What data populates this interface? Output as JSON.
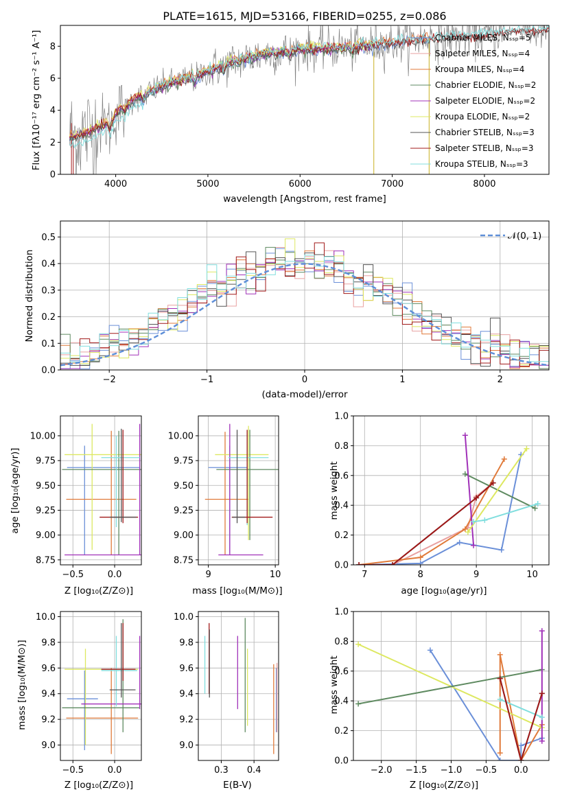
{
  "colors": {
    "chabrier_miles": "#6a8fd8",
    "salpeter_miles": "#e8a0a0",
    "kroupa_miles": "#e07a3a",
    "chabrier_elodie": "#5e8a60",
    "salpeter_elodie": "#a030b8",
    "kroupa_elodie": "#dde860",
    "chabrier_stelib": "#555555",
    "salpeter_stelib": "#a01818",
    "kroupa_stelib": "#80dede",
    "data": "#808080",
    "normal": "#5f8fd8"
  },
  "chart_data": [
    {
      "id": "spectrum",
      "type": "line",
      "title": "PLATE=1615, MJD=53166, FIBERID=0255, z=0.086",
      "xlabel": "wavelength [Angstrom, rest frame]",
      "ylabel": "Flux [fλ10⁻¹⁷ erg cm⁻² s⁻¹ A⁻¹]",
      "xlim": [
        3400,
        8700
      ],
      "ylim": [
        0,
        9.3
      ],
      "xticks": [
        "4000",
        "5000",
        "6000",
        "7000",
        "8000"
      ],
      "yticks": [
        "0",
        "2",
        "4",
        "6",
        "8"
      ],
      "grid": false,
      "legend_position": "right",
      "continuum_knots": [
        [
          3500,
          2.3
        ],
        [
          3700,
          2.6
        ],
        [
          3900,
          3.2
        ],
        [
          4000,
          3.8
        ],
        [
          4200,
          4.7
        ],
        [
          4500,
          5.5
        ],
        [
          4900,
          6.2
        ],
        [
          5200,
          6.9
        ],
        [
          5600,
          7.5
        ],
        [
          6000,
          7.8
        ],
        [
          6400,
          7.9
        ],
        [
          6800,
          8.1
        ],
        [
          7000,
          8.2
        ],
        [
          7400,
          8.5
        ],
        [
          7800,
          8.6
        ],
        [
          8300,
          8.9
        ],
        [
          8700,
          9.0
        ]
      ],
      "series": [
        {
          "name": "Chabrier MILES, N_SSP=5",
          "color_key": "chabrier_miles"
        },
        {
          "name": "Salpeter MILES, N_SSP=4",
          "color_key": "salpeter_miles"
        },
        {
          "name": "Kroupa MILES, N_SSP=4",
          "color_key": "kroupa_miles"
        },
        {
          "name": "Chabrier ELODIE, N_SSP=2",
          "color_key": "chabrier_elodie"
        },
        {
          "name": "Salpeter ELODIE, N_SSP=2",
          "color_key": "salpeter_elodie"
        },
        {
          "name": "Kroupa ELODIE, N_SSP=2",
          "color_key": "kroupa_elodie"
        },
        {
          "name": "Chabrier STELIB, N_SSP=3",
          "color_key": "chabrier_stelib"
        },
        {
          "name": "Salpeter STELIB, N_SSP=3",
          "color_key": "salpeter_stelib"
        },
        {
          "name": "Kroupa STELIB, N_SSP=3",
          "color_key": "kroupa_stelib"
        }
      ]
    },
    {
      "id": "residuals",
      "type": "histogram",
      "xlabel": "(data-model)/error",
      "ylabel": "Normed distribution",
      "xlim": [
        -2.5,
        2.5
      ],
      "ylim": [
        0,
        0.56
      ],
      "xticks": [
        "−2",
        "−1",
        "0",
        "1",
        "2"
      ],
      "yticks": [
        "0.0",
        "0.1",
        "0.2",
        "0.3",
        "0.4",
        "0.5"
      ],
      "grid": true,
      "legend": "𝒩(0, 1)",
      "legend_position": "top-right",
      "bin_width": 0.1,
      "reference_curve": "normal(0,1)"
    },
    {
      "id": "age-Z",
      "type": "errorbar",
      "xlabel": "Z [log₁₀(Z/Z⊙)]",
      "ylabel": "age  [log₁₀(age/yr)]",
      "xlim": [
        -0.65,
        0.32
      ],
      "ylim": [
        8.7,
        10.2
      ],
      "xticks": [
        {
          "v": -0.5,
          "t": "−0.5"
        },
        {
          "v": 0,
          "t": "0.0"
        }
      ],
      "yticks": [
        {
          "v": 8.75,
          "t": "8.75"
        },
        {
          "v": 9.0,
          "t": "9.00"
        },
        {
          "v": 9.25,
          "t": "9.25"
        },
        {
          "v": 9.5,
          "t": "9.50"
        },
        {
          "v": 9.75,
          "t": "9.75"
        },
        {
          "v": 10.0,
          "t": "10.00"
        }
      ],
      "grid": true,
      "points": [
        {
          "c": "chabrier_miles",
          "x": -0.36,
          "y": 9.68,
          "xl": -0.57,
          "xh": 0.3,
          "yl": 8.8,
          "yh": 9.9
        },
        {
          "c": "kroupa_miles",
          "x": -0.04,
          "y": 9.36,
          "xl": -0.58,
          "xh": 0.26,
          "yl": 8.8,
          "yh": 10.05
        },
        {
          "c": "kroupa_elodie",
          "x": -0.27,
          "y": 9.81,
          "xl": -0.6,
          "xh": 0.32,
          "yl": 8.85,
          "yh": 10.12
        },
        {
          "c": "chabrier_elodie",
          "x": 0.05,
          "y": 9.66,
          "xl": -0.63,
          "xh": 0.32,
          "yl": 8.8,
          "yh": 10.05
        },
        {
          "c": "salpeter_elodie",
          "x": 0.3,
          "y": 8.8,
          "xl": -0.6,
          "xh": 0.32,
          "yl": 8.8,
          "yh": 10.12
        },
        {
          "c": "kroupa_stelib",
          "x": 0.02,
          "y": 9.78,
          "xl": -0.16,
          "xh": 0.3,
          "yl": 9.08,
          "yh": 10.0
        },
        {
          "c": "salpeter_stelib",
          "x": 0.1,
          "y": 9.18,
          "xl": -0.18,
          "xh": 0.28,
          "yl": 9.12,
          "yh": 10.06
        },
        {
          "c": "chabrier_stelib",
          "x": 0.08,
          "y": 9.18,
          "xl": -0.06,
          "xh": 0.26,
          "yl": 9.13,
          "yh": 10.07
        }
      ]
    },
    {
      "id": "age-mass",
      "type": "errorbar",
      "xlabel": "mass [log₁₀(M/M⊙)]",
      "xlim": [
        8.85,
        10.05
      ],
      "ylim": [
        8.7,
        10.2
      ],
      "xticks": [
        {
          "v": 9,
          "t": "9"
        },
        {
          "v": 10,
          "t": "10"
        }
      ],
      "yticks": [
        {
          "v": 8.75,
          "t": "8.75"
        },
        {
          "v": 9.0,
          "t": "9.00"
        },
        {
          "v": 9.25,
          "t": "9.25"
        },
        {
          "v": 9.5,
          "t": "9.50"
        },
        {
          "v": 9.75,
          "t": "9.75"
        },
        {
          "v": 10.0,
          "t": "10.00"
        }
      ],
      "grid": true,
      "points": [
        {
          "c": "chabrier_miles",
          "x": 9.32,
          "y": 9.68,
          "xl": 9.0,
          "xh": 9.58,
          "yl": 8.82,
          "yh": 9.9
        },
        {
          "c": "kroupa_miles",
          "x": 9.25,
          "y": 9.36,
          "xl": 8.95,
          "xh": 9.6,
          "yl": 8.8,
          "yh": 10.04
        },
        {
          "c": "kroupa_elodie",
          "x": 9.6,
          "y": 9.81,
          "xl": 9.1,
          "xh": 9.9,
          "yl": 8.95,
          "yh": 10.1
        },
        {
          "c": "chabrier_elodie",
          "x": 9.62,
          "y": 9.66,
          "xl": 9.12,
          "xh": 10.05,
          "yl": 8.95,
          "yh": 10.06
        },
        {
          "c": "salpeter_elodie",
          "x": 9.32,
          "y": 8.8,
          "xl": 9.15,
          "xh": 9.82,
          "yl": 8.8,
          "yh": 10.12
        },
        {
          "c": "kroupa_stelib",
          "x": 9.58,
          "y": 9.78,
          "xl": 9.3,
          "xh": 9.9,
          "yl": 9.1,
          "yh": 10.05
        },
        {
          "c": "salpeter_stelib",
          "x": 9.58,
          "y": 9.18,
          "xl": 9.35,
          "xh": 9.96,
          "yl": 9.12,
          "yh": 10.06
        },
        {
          "c": "chabrier_stelib",
          "x": 9.43,
          "y": 9.18,
          "xl": 9.36,
          "xh": 9.55,
          "yl": 9.12,
          "yh": 10.06
        }
      ]
    },
    {
      "id": "mw-age",
      "type": "line",
      "xlabel": "age  [log₁₀(age/yr)]",
      "ylabel": "mass weight",
      "xlim": [
        6.8,
        10.3
      ],
      "ylim": [
        0,
        1.0
      ],
      "xticks": [
        {
          "v": 7,
          "t": "7"
        },
        {
          "v": 8,
          "t": "8"
        },
        {
          "v": 9,
          "t": "9"
        },
        {
          "v": 10,
          "t": "10"
        }
      ],
      "yticks": [
        {
          "v": 0,
          "t": "0.0"
        },
        {
          "v": 0.2,
          "t": "0.2"
        },
        {
          "v": 0.4,
          "t": "0.4"
        },
        {
          "v": 0.6,
          "t": "0.6"
        },
        {
          "v": 0.8,
          "t": "0.8"
        },
        {
          "v": 1.0,
          "t": "1.0"
        }
      ],
      "grid": true,
      "series": [
        {
          "c": "chabrier_miles",
          "points": [
            [
              6.9,
              0.0
            ],
            [
              8.0,
              0.01
            ],
            [
              8.7,
              0.15
            ],
            [
              9.45,
              0.1
            ],
            [
              9.8,
              0.74
            ]
          ]
        },
        {
          "c": "salpeter_miles",
          "points": [
            [
              6.9,
              0.0
            ],
            [
              7.5,
              0.0
            ],
            [
              8.85,
              0.25
            ],
            [
              9.0,
              0.46
            ],
            [
              9.3,
              0.55
            ]
          ]
        },
        {
          "c": "kroupa_miles",
          "points": [
            [
              6.9,
              0.0
            ],
            [
              8.0,
              0.05
            ],
            [
              8.8,
              0.24
            ],
            [
              9.5,
              0.71
            ]
          ]
        },
        {
          "c": "chabrier_elodie",
          "points": [
            [
              8.8,
              0.61
            ],
            [
              10.05,
              0.38
            ]
          ]
        },
        {
          "c": "salpeter_elodie",
          "points": [
            [
              8.8,
              0.87
            ],
            [
              8.95,
              0.13
            ]
          ]
        },
        {
          "c": "kroupa_elodie",
          "points": [
            [
              8.85,
              0.22
            ],
            [
              9.9,
              0.78
            ]
          ]
        },
        {
          "c": "chabrier_stelib",
          "points": [
            [
              6.9,
              0.0
            ],
            [
              7.5,
              0.0
            ],
            [
              9.0,
              0.45
            ],
            [
              9.3,
              0.55
            ]
          ]
        },
        {
          "c": "salpeter_stelib",
          "points": [
            [
              6.9,
              0.0
            ],
            [
              7.5,
              0.0
            ],
            [
              9.0,
              0.45
            ],
            [
              9.3,
              0.55
            ]
          ]
        },
        {
          "c": "kroupa_stelib",
          "points": [
            [
              8.95,
              0.29
            ],
            [
              9.15,
              0.3
            ],
            [
              10.1,
              0.41
            ]
          ]
        }
      ]
    },
    {
      "id": "mass-Z",
      "type": "errorbar",
      "xlabel": "Z [log₁₀(Z/Z⊙)]",
      "ylabel": "mass [log₁₀(M/M⊙)]",
      "xlim": [
        -0.65,
        0.32
      ],
      "ylim": [
        8.88,
        10.04
      ],
      "xticks": [
        {
          "v": -0.5,
          "t": "−0.5"
        },
        {
          "v": 0,
          "t": "0.0"
        }
      ],
      "yticks": [
        {
          "v": 9.0,
          "t": "9.0"
        },
        {
          "v": 9.2,
          "t": "9.2"
        },
        {
          "v": 9.4,
          "t": "9.4"
        },
        {
          "v": 9.6,
          "t": "9.6"
        },
        {
          "v": 9.8,
          "t": "9.8"
        },
        {
          "v": 10.0,
          "t": "10.0"
        }
      ],
      "grid": true,
      "points": [
        {
          "c": "chabrier_miles",
          "x": -0.36,
          "y": 9.36,
          "xl": -0.57,
          "xh": -0.2,
          "yl": 8.96,
          "yh": 9.58
        },
        {
          "c": "kroupa_miles",
          "x": -0.04,
          "y": 9.21,
          "xl": -0.58,
          "xh": 0.28,
          "yl": 8.93,
          "yh": 9.6
        },
        {
          "c": "kroupa_elodie",
          "x": -0.35,
          "y": 9.59,
          "xl": -0.6,
          "xh": 0.28,
          "yl": 9.0,
          "yh": 9.75
        },
        {
          "c": "chabrier_elodie",
          "x": 0.1,
          "y": 9.29,
          "xl": -0.63,
          "xh": 0.3,
          "yl": 9.1,
          "yh": 9.98
        },
        {
          "c": "salpeter_elodie",
          "x": 0.3,
          "y": 9.32,
          "xl": -0.4,
          "xh": 0.32,
          "yl": 9.28,
          "yh": 9.85
        },
        {
          "c": "kroupa_stelib",
          "x": 0.02,
          "y": 9.58,
          "xl": -0.16,
          "xh": 0.27,
          "yl": 9.3,
          "yh": 9.85
        },
        {
          "c": "salpeter_stelib",
          "x": 0.1,
          "y": 9.59,
          "xl": -0.16,
          "xh": 0.25,
          "yl": 9.5,
          "yh": 9.95
        },
        {
          "c": "chabrier_stelib",
          "x": 0.08,
          "y": 9.43,
          "xl": -0.06,
          "xh": 0.25,
          "yl": 9.37,
          "yh": 9.95
        }
      ]
    },
    {
      "id": "mass-EBV",
      "type": "errorbar",
      "xlabel": "E(B-V)",
      "xlim": [
        0.23,
        0.475
      ],
      "ylim": [
        8.88,
        10.04
      ],
      "xticks": [
        {
          "v": 0.3,
          "t": "0.3"
        },
        {
          "v": 0.4,
          "t": "0.4"
        }
      ],
      "yticks": [
        {
          "v": 9.0,
          "t": "9.0"
        },
        {
          "v": 9.2,
          "t": "9.2"
        },
        {
          "v": 9.4,
          "t": "9.4"
        },
        {
          "v": 9.6,
          "t": "9.6"
        },
        {
          "v": 9.8,
          "t": "9.8"
        },
        {
          "v": 10.0,
          "t": "10.0"
        }
      ],
      "grid": true,
      "points": [
        {
          "c": "kroupa_stelib",
          "x": 0.25,
          "y": 9.58,
          "xl": 0.25,
          "xh": 0.25,
          "yl": 9.4,
          "yh": 9.85
        },
        {
          "c": "salpeter_stelib",
          "x": 0.263,
          "y": 9.6,
          "xl": 0.263,
          "xh": 0.263,
          "yl": 9.4,
          "yh": 9.95
        },
        {
          "c": "chabrier_stelib",
          "x": 0.264,
          "y": 9.43,
          "xl": 0.264,
          "xh": 0.264,
          "yl": 9.37,
          "yh": 9.9
        },
        {
          "c": "salpeter_elodie",
          "x": 0.35,
          "y": 9.32,
          "xl": 0.35,
          "xh": 0.35,
          "yl": 9.28,
          "yh": 9.85
        },
        {
          "c": "chabrier_elodie",
          "x": 0.373,
          "y": 9.29,
          "xl": 0.373,
          "xh": 0.373,
          "yl": 9.1,
          "yh": 9.99
        },
        {
          "c": "kroupa_elodie",
          "x": 0.38,
          "y": 9.59,
          "xl": 0.38,
          "xh": 0.38,
          "yl": 9.15,
          "yh": 9.75
        },
        {
          "c": "kroupa_miles",
          "x": 0.46,
          "y": 9.21,
          "xl": 0.46,
          "xh": 0.46,
          "yl": 8.93,
          "yh": 9.63
        },
        {
          "c": "chabrier_miles",
          "x": 0.468,
          "y": 9.36,
          "xl": 0.468,
          "xh": 0.468,
          "yl": 9.1,
          "yh": 9.6
        },
        {
          "c": "salpeter_miles",
          "x": 0.47,
          "y": 9.36,
          "xl": 0.47,
          "xh": 0.47,
          "yl": 9.1,
          "yh": 9.64
        }
      ]
    },
    {
      "id": "mw-Z",
      "type": "line",
      "xlabel": "Z [log₁₀(Z/Z⊙)]",
      "ylabel": "mass weight",
      "xlim": [
        -2.4,
        0.4
      ],
      "ylim": [
        0,
        1.0
      ],
      "xticks": [
        {
          "v": -2.0,
          "t": "−2.0"
        },
        {
          "v": -1.5,
          "t": "−1.5"
        },
        {
          "v": -1.0,
          "t": "−1.0"
        },
        {
          "v": -0.5,
          "t": "−0.5"
        },
        {
          "v": 0.0,
          "t": "0.0"
        }
      ],
      "yticks": [
        {
          "v": 0,
          "t": "0.0"
        },
        {
          "v": 0.2,
          "t": "0.2"
        },
        {
          "v": 0.4,
          "t": "0.4"
        },
        {
          "v": 0.6,
          "t": "0.6"
        },
        {
          "v": 0.8,
          "t": "0.8"
        },
        {
          "v": 1.0,
          "t": "1.0"
        }
      ],
      "grid": true,
      "series": [
        {
          "c": "chabrier_miles",
          "points": [
            [
              -1.3,
              0.74
            ],
            [
              -0.3,
              0.0
            ],
            [
              0.0,
              0.0
            ],
            [
              0.0,
              0.1
            ],
            [
              0.3,
              0.15
            ]
          ]
        },
        {
          "c": "kroupa_miles",
          "points": [
            [
              -0.3,
              0.05
            ],
            [
              -0.3,
              0.71
            ],
            [
              0.0,
              0.0
            ],
            [
              0.3,
              0.24
            ]
          ]
        },
        {
          "c": "kroupa_elodie",
          "points": [
            [
              -2.33,
              0.78
            ],
            [
              0.3,
              0.22
            ]
          ]
        },
        {
          "c": "chabrier_elodie",
          "points": [
            [
              -2.33,
              0.38
            ],
            [
              0.3,
              0.61
            ]
          ]
        },
        {
          "c": "salpeter_elodie",
          "points": [
            [
              0.3,
              0.13
            ],
            [
              0.3,
              0.87
            ]
          ]
        },
        {
          "c": "kroupa_stelib",
          "points": [
            [
              -0.3,
              0.41
            ],
            [
              0.3,
              0.29
            ]
          ]
        },
        {
          "c": "chabrier_stelib",
          "points": [
            [
              -0.3,
              0.55
            ],
            [
              0.0,
              0.0
            ],
            [
              0.3,
              0.45
            ]
          ]
        },
        {
          "c": "salpeter_stelib",
          "points": [
            [
              -0.3,
              0.55
            ],
            [
              0.0,
              0.0
            ],
            [
              0.3,
              0.45
            ]
          ]
        }
      ]
    }
  ]
}
